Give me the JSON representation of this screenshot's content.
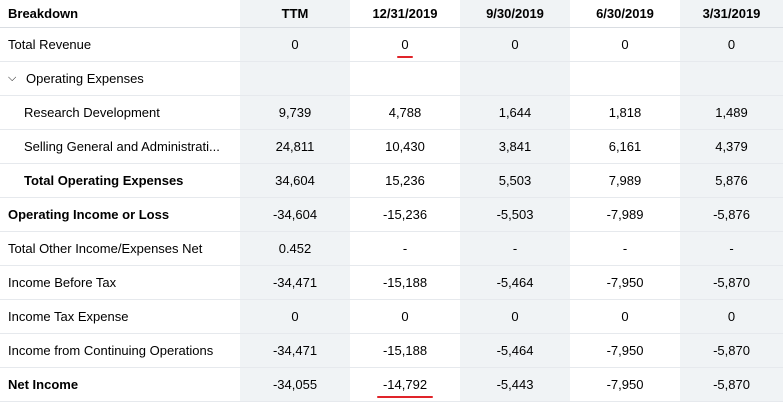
{
  "columns": [
    "Breakdown",
    "TTM",
    "12/31/2019",
    "9/30/2019",
    "6/30/2019",
    "3/31/2019"
  ],
  "rows": [
    {
      "label": "Total Revenue",
      "values": [
        "0",
        "0",
        "0",
        "0",
        "0"
      ]
    },
    {
      "label": "Operating Expenses",
      "values": [
        "",
        "",
        "",
        "",
        ""
      ]
    },
    {
      "label": "Research Development",
      "values": [
        "9,739",
        "4,788",
        "1,644",
        "1,818",
        "1,489"
      ]
    },
    {
      "label": "Selling General and Administrati...",
      "values": [
        "24,811",
        "10,430",
        "3,841",
        "6,161",
        "4,379"
      ]
    },
    {
      "label": "Total Operating Expenses",
      "values": [
        "34,604",
        "15,236",
        "5,503",
        "7,989",
        "5,876"
      ]
    },
    {
      "label": "Operating Income or Loss",
      "values": [
        "-34,604",
        "-15,236",
        "-5,503",
        "-7,989",
        "-5,876"
      ]
    },
    {
      "label": "Total Other Income/Expenses Net",
      "values": [
        "0.452",
        "-",
        "-",
        "-",
        "-"
      ]
    },
    {
      "label": "Income Before Tax",
      "values": [
        "-34,471",
        "-15,188",
        "-5,464",
        "-7,950",
        "-5,870"
      ]
    },
    {
      "label": "Income Tax Expense",
      "values": [
        "0",
        "0",
        "0",
        "0",
        "0"
      ]
    },
    {
      "label": "Income from Continuing Operations",
      "values": [
        "-34,471",
        "-15,188",
        "-5,464",
        "-7,950",
        "-5,870"
      ]
    },
    {
      "label": "Net Income",
      "values": [
        "-34,055",
        "-14,792",
        "-5,443",
        "-7,950",
        "-5,870"
      ]
    }
  ],
  "colors": {
    "shade": "#f0f3f5",
    "annotation": "#e0242a"
  },
  "icons": {
    "expand": "chevron-down-icon"
  }
}
